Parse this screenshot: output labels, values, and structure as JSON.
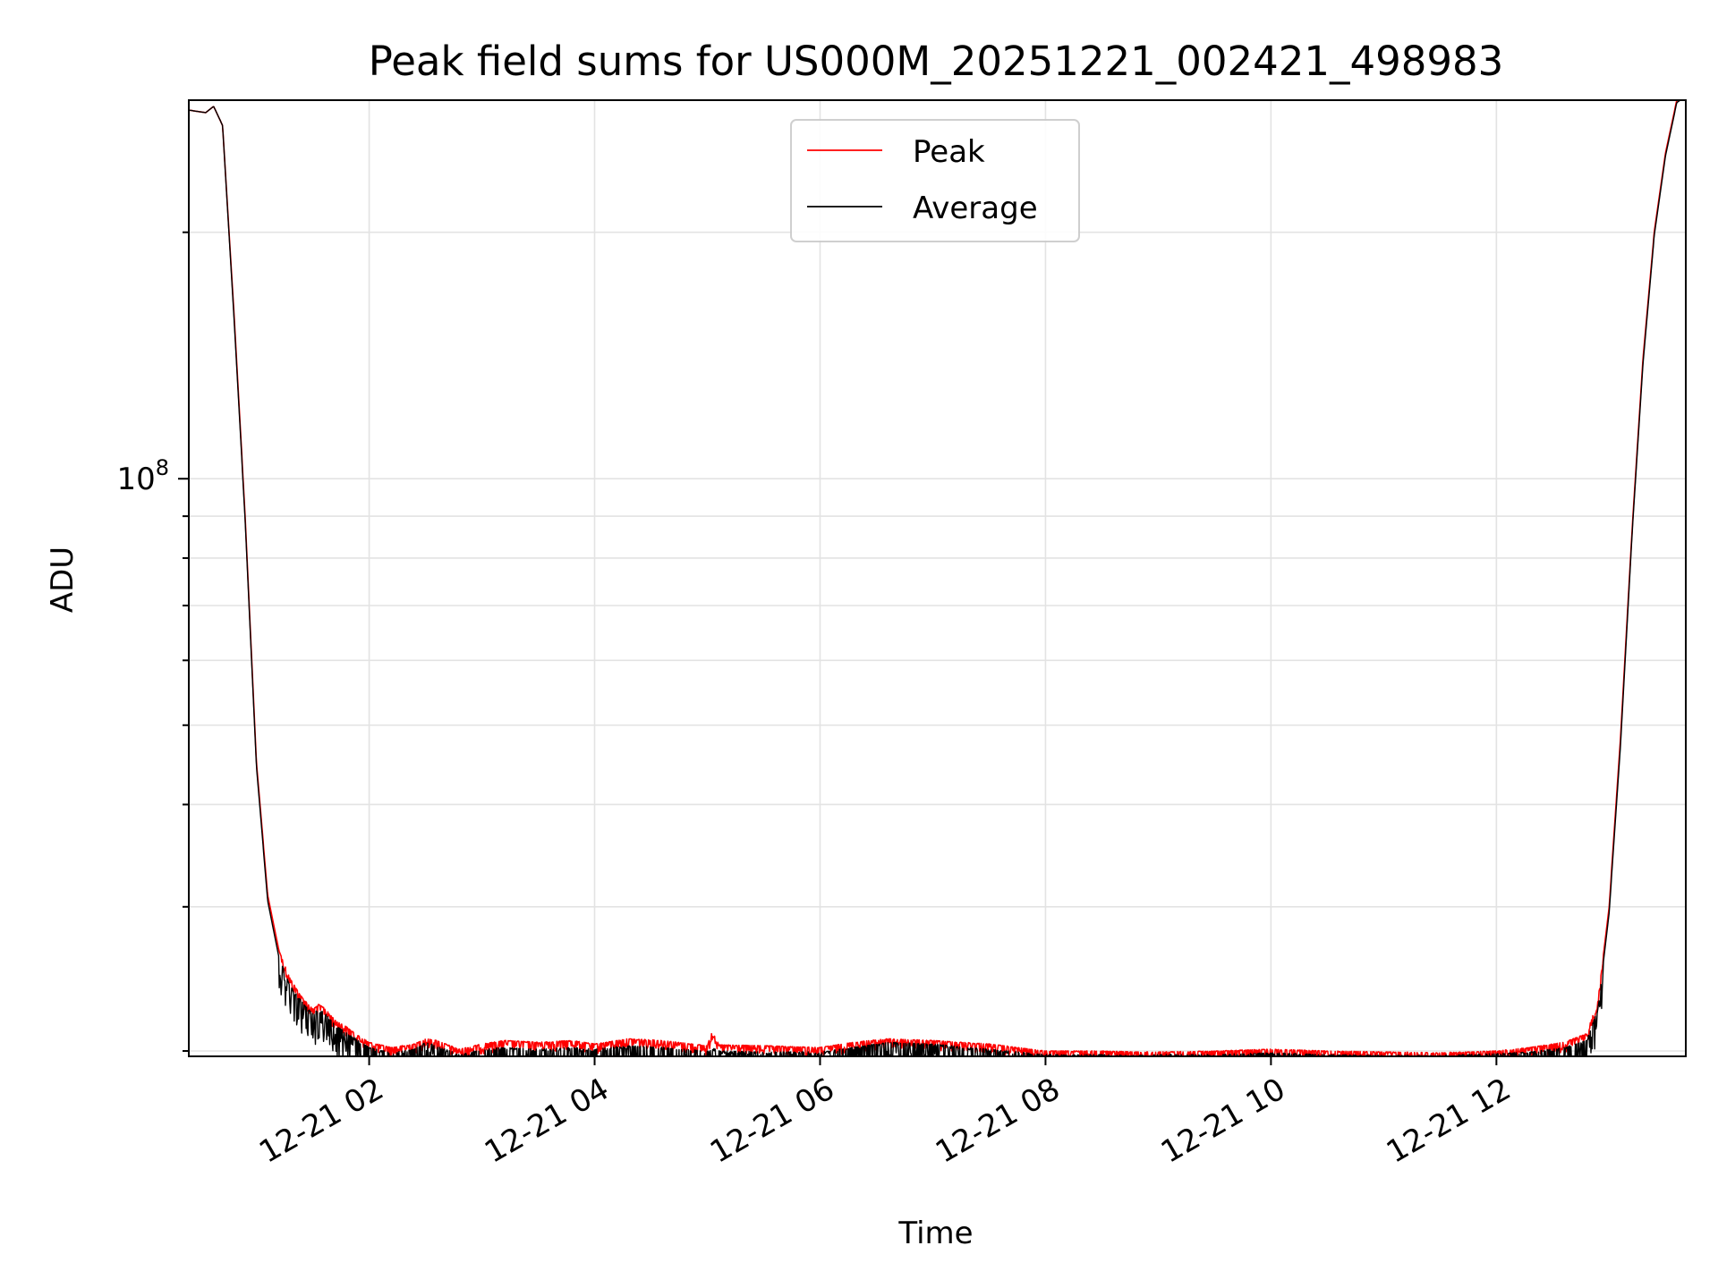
{
  "chart_data": {
    "type": "line",
    "title": "Peak field sums for US000M_20251221_002421_498983",
    "xlabel": "Time",
    "ylabel": "ADU",
    "yscale": "log",
    "ylim": [
      19700000,
      290000000
    ],
    "xlim_hours": [
      0.4,
      13.68
    ],
    "grid": true,
    "legend_position": "upper center",
    "x_tick_labels": [
      {
        "hour": 2,
        "label": "12-21 02"
      },
      {
        "hour": 4,
        "label": "12-21 04"
      },
      {
        "hour": 6,
        "label": "12-21 06"
      },
      {
        "hour": 8,
        "label": "12-21 08"
      },
      {
        "hour": 10,
        "label": "12-21 10"
      },
      {
        "hour": 12,
        "label": "12-21 12"
      }
    ],
    "y_major_tick": {
      "value": 100000000,
      "base": "10",
      "exponent": "8"
    },
    "y_minor_ticks": [
      20000000,
      30000000,
      40000000,
      50000000,
      60000000,
      70000000,
      80000000,
      90000000,
      200000000
    ],
    "series": [
      {
        "name": "Peak",
        "color": "#ff0000",
        "x_hours": [
          0.4,
          0.55,
          0.62,
          0.7,
          0.8,
          0.9,
          1.0,
          1.1,
          1.2,
          1.3,
          1.4,
          1.5,
          1.55,
          1.6,
          1.7,
          1.8,
          1.9,
          2.0,
          2.2,
          2.4,
          2.5,
          2.6,
          2.8,
          3.0,
          3.2,
          3.5,
          3.8,
          4.0,
          4.3,
          4.6,
          5.0,
          5.05,
          5.1,
          5.5,
          6.0,
          6.3,
          6.6,
          7.0,
          7.5,
          8.0,
          8.5,
          8.8,
          9.0,
          9.5,
          10.0,
          10.5,
          11.0,
          11.5,
          12.0,
          12.3,
          12.6,
          12.8,
          12.9,
          13.0,
          13.1,
          13.2,
          13.3,
          13.4,
          13.5,
          13.6,
          13.68
        ],
        "values": [
          282000000,
          280000000,
          285000000,
          270000000,
          160000000,
          90000000,
          45000000,
          31000000,
          26500000,
          24500000,
          23300000,
          22500000,
          22800000,
          22600000,
          21800000,
          21400000,
          20900000,
          20500000,
          20200000,
          20400000,
          20700000,
          20600000,
          20100000,
          20400000,
          20600000,
          20500000,
          20600000,
          20400000,
          20700000,
          20600000,
          20300000,
          21300000,
          20350000,
          20300000,
          20200000,
          20500000,
          20700000,
          20600000,
          20400000,
          20000000,
          20000000,
          19950000,
          19950000,
          20000000,
          20100000,
          20000000,
          19950000,
          19900000,
          20000000,
          20200000,
          20500000,
          21000000,
          23000000,
          30000000,
          48000000,
          85000000,
          140000000,
          200000000,
          250000000,
          290000000,
          295000000
        ]
      },
      {
        "name": "Average",
        "color": "#000000",
        "x_hours": [
          0.4,
          0.55,
          0.62,
          0.7,
          0.8,
          0.9,
          1.0,
          1.1,
          1.2,
          1.3,
          1.4,
          1.5,
          1.55,
          1.6,
          1.7,
          1.8,
          1.9,
          2.0,
          2.2,
          2.4,
          2.5,
          2.6,
          2.8,
          3.0,
          3.2,
          3.5,
          3.8,
          4.0,
          4.3,
          4.6,
          5.0,
          5.05,
          5.1,
          5.5,
          6.0,
          6.3,
          6.6,
          7.0,
          7.5,
          8.0,
          8.5,
          8.8,
          9.0,
          9.5,
          10.0,
          10.5,
          11.0,
          11.5,
          12.0,
          12.3,
          12.6,
          12.8,
          12.9,
          13.0,
          13.1,
          13.2,
          13.3,
          13.4,
          13.5,
          13.6,
          13.68
        ],
        "values": [
          282000000,
          280000000,
          285000000,
          270000000,
          158000000,
          89000000,
          44500000,
          30500000,
          26000000,
          24000000,
          23000000,
          22200000,
          22500000,
          22300000,
          21500000,
          21100000,
          20600000,
          20200000,
          19900000,
          20100000,
          20500000,
          20300000,
          19800000,
          20100000,
          20200000,
          20100000,
          20200000,
          20100000,
          20300000,
          20200000,
          20000000,
          20200000,
          20000000,
          19950000,
          19950000,
          20200000,
          20500000,
          20400000,
          20100000,
          19800000,
          19800000,
          19750000,
          19800000,
          19800000,
          19900000,
          19800000,
          19750000,
          19750000,
          19850000,
          19950000,
          20200000,
          20600000,
          22500000,
          29500000,
          47000000,
          84000000,
          138000000,
          198000000,
          248000000,
          288000000,
          293000000
        ]
      }
    ]
  }
}
